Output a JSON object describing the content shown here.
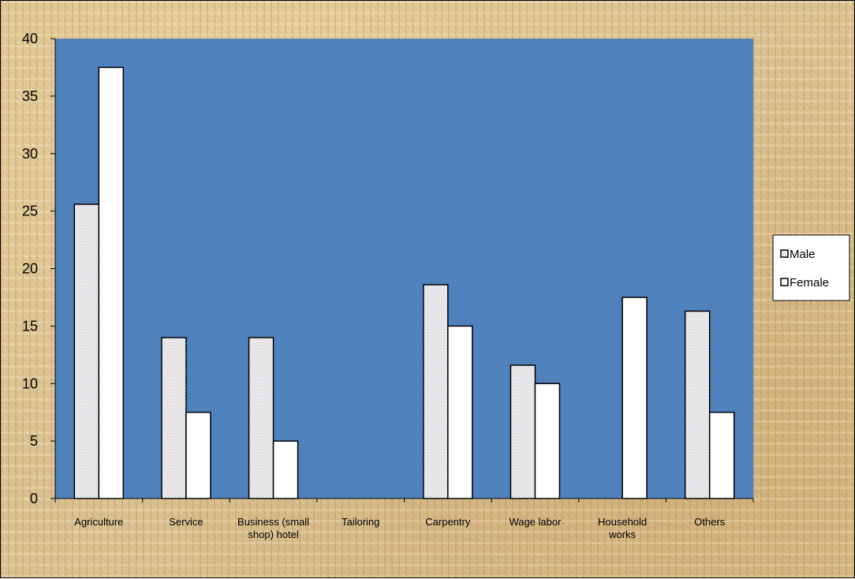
{
  "chart_data": {
    "type": "bar",
    "categories": [
      [
        "Agriculture"
      ],
      [
        "Service"
      ],
      [
        "Business (small",
        "shop) hotel"
      ],
      [
        "Tailoring"
      ],
      [
        "Carpentry"
      ],
      [
        "Wage labor"
      ],
      [
        "Household",
        "works"
      ],
      [
        "Others"
      ]
    ],
    "series": [
      {
        "name": "Male",
        "values": [
          25.6,
          14.0,
          14.0,
          0,
          18.6,
          11.6,
          0,
          16.3
        ]
      },
      {
        "name": "Female",
        "values": [
          37.5,
          7.5,
          5.0,
          0,
          15.0,
          10.0,
          17.5,
          7.5
        ]
      }
    ],
    "ylim": [
      0,
      40
    ],
    "yticks": [
      0,
      5,
      10,
      15,
      20,
      25,
      30,
      35,
      40
    ],
    "legend_position": "right",
    "grid": false,
    "colors": {
      "plot_area": "#4f81bd",
      "male_fill": "#f1f1f1",
      "female_fill": "#ffffff",
      "bar_stroke": "#000000"
    }
  }
}
